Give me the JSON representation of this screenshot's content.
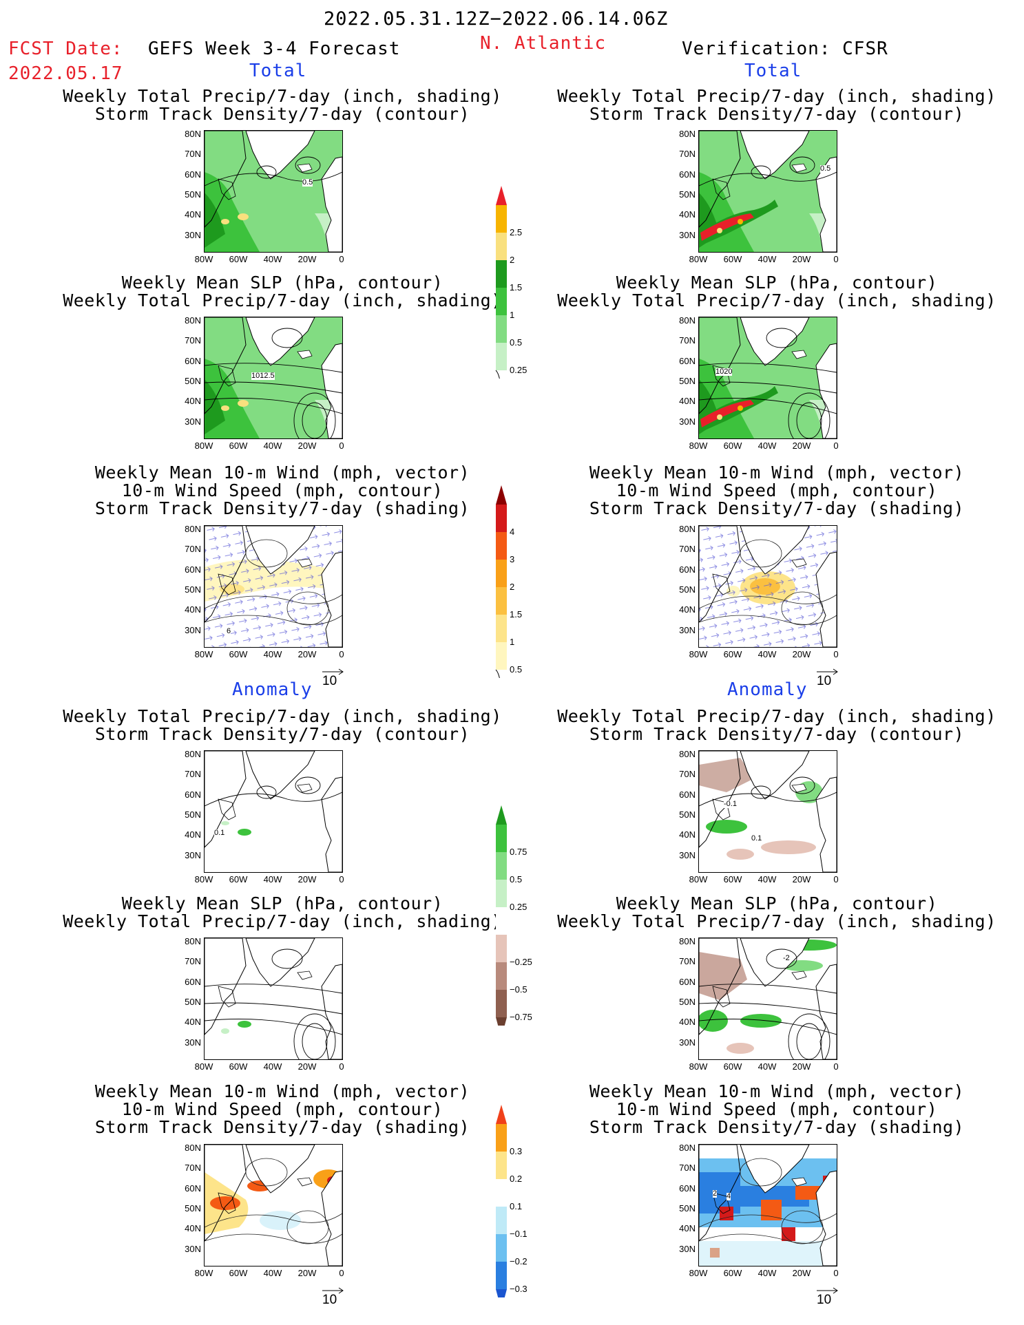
{
  "header": {
    "period": "2022.05.31.12Z−2022.06.14.06Z",
    "fcst_label": "FCST Date:",
    "fcst_date": "2022.05.17",
    "model": "GEFS Week 3-4 Forecast",
    "region": "N. Atlantic",
    "verification": "Verification: CFSR"
  },
  "sections": {
    "total": "Total",
    "anomaly": "Anomaly"
  },
  "titles": {
    "precip_track": [
      "Weekly Total Precip/7-day (inch, shading)",
      "Storm Track Density/7-day (contour)"
    ],
    "slp_precip": [
      "Weekly Mean SLP (hPa, contour)",
      "Weekly Total Precip/7-day (inch, shading)"
    ],
    "wind_track": [
      "Weekly Mean 10-m Wind (mph, vector)",
      "10-m Wind Speed (mph, contour)",
      "Storm Track Density/7-day (shading)"
    ]
  },
  "axes": {
    "lat": [
      "80N",
      "70N",
      "60N",
      "50N",
      "40N",
      "30N"
    ],
    "lon": [
      "80W",
      "60W",
      "40W",
      "20W",
      "0"
    ]
  },
  "contour_labels": {
    "p1_left": "0.5",
    "p1_right": "0.5",
    "p2_left": "1012.5",
    "p2_right": "1020",
    "p3_left": "6",
    "p4_left": "0.1",
    "p4_right_a": "-0.1",
    "p4_right_b": "0.1",
    "p5_right": "-2",
    "p6_right_a": "2",
    "p6_right_b": "4"
  },
  "vector_ref": "10",
  "colorbars": {
    "precip_total": {
      "labels": [
        "2.5",
        "2",
        "1.5",
        "1",
        "0.5",
        "0.25"
      ],
      "colors": [
        "#f7b400",
        "#f9e07e",
        "#1e9a1e",
        "#3dc23d",
        "#82dc82",
        "#c6f0c6"
      ],
      "cap_top": "#e8202a"
    },
    "track_total": {
      "labels": [
        "4",
        "3",
        "2",
        "1.5",
        "1",
        "0.5"
      ],
      "colors": [
        "#d41a1a",
        "#f45a14",
        "#f9a018",
        "#fbc040",
        "#fde48a",
        "#fff6bf"
      ],
      "cap_top": "#8c0000"
    },
    "precip_anom": {
      "labels": [
        "0.75",
        "0.5",
        "0.25",
        "−0.25",
        "−0.5",
        "−0.75"
      ],
      "colors": [
        "#3dc23d",
        "#82dc82",
        "#c6f0c6",
        "#ffffff",
        "#e6c4b9",
        "#b88a7c",
        "#8f6050"
      ],
      "cap_top": "#1e9a1e",
      "cap_bottom": "#6b3f30"
    },
    "track_anom": {
      "labels": [
        "0.3",
        "0.2",
        "0.1",
        "−0.1",
        "−0.2",
        "−0.3"
      ],
      "colors": [
        "#f9a018",
        "#fde48a",
        "#ffffff",
        "#bfeaf7",
        "#6cc0f0",
        "#2a7fe0"
      ],
      "cap_top": "#f0401a",
      "cap_bottom": "#1a55d0"
    }
  }
}
